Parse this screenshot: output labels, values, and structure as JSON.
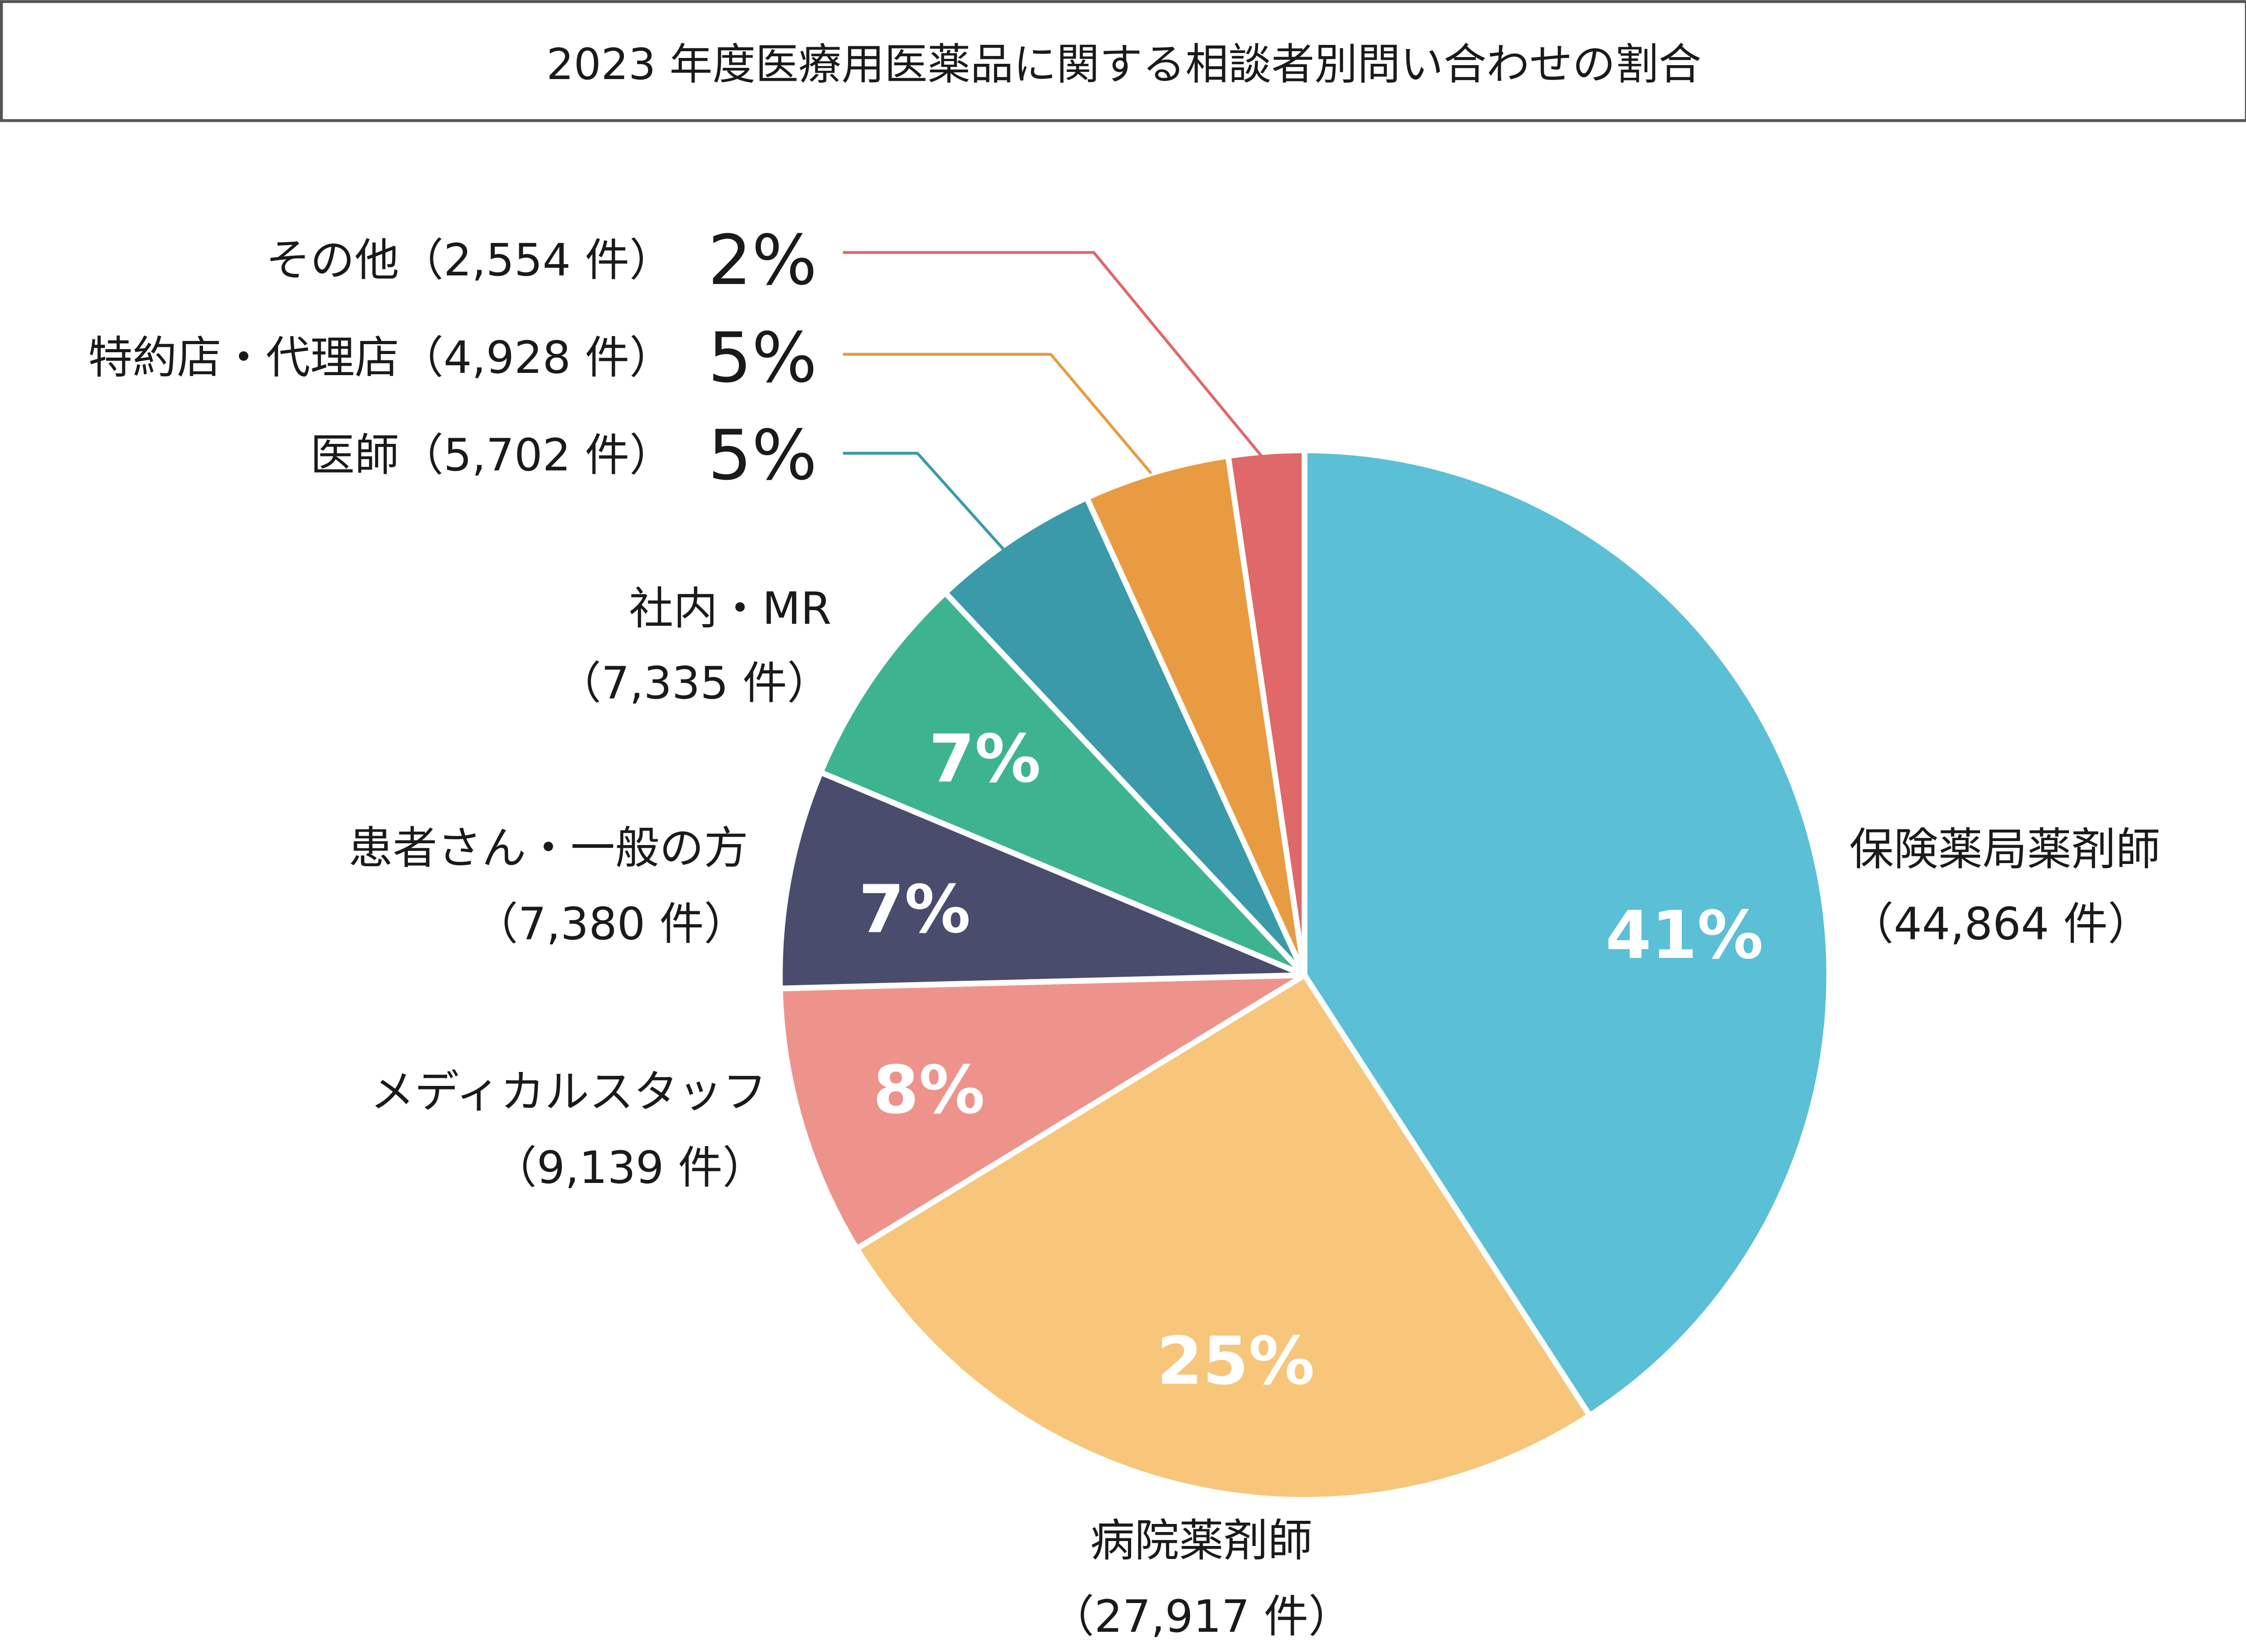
{
  "chart_data": {
    "type": "pie",
    "title": "2023 年度医療用医薬品に関する相談者別問い合わせの割合",
    "start_angle": "12 o'clock",
    "direction": "clockwise",
    "slices": [
      {
        "label": "保険薬局薬剤師",
        "count": 44864,
        "count_text": "（44,864 件）",
        "percent": 41,
        "percent_text": "41%",
        "color": "#5bbfd6"
      },
      {
        "label": "病院薬剤師",
        "count": 27917,
        "count_text": "（27,917 件）",
        "percent": 25,
        "percent_text": "25%",
        "color": "#f7c67b"
      },
      {
        "label": "メディカルスタッフ",
        "count": 9139,
        "count_text": "（9,139 件）",
        "percent": 8,
        "percent_text": "8%",
        "color": "#ee938c"
      },
      {
        "label": "患者さん・一般の方",
        "count": 7380,
        "count_text": "（7,380 件）",
        "percent": 7,
        "percent_text": "7%",
        "color": "#4a4c6d"
      },
      {
        "label": "社内・MR",
        "count": 7335,
        "count_text": "（7,335 件）",
        "percent": 7,
        "percent_text": "7%",
        "color": "#3db48f"
      },
      {
        "label": "医師",
        "count": 5702,
        "count_text": "（5,702 件）",
        "percent": 5,
        "percent_text": "5%",
        "color": "#3a9aa9"
      },
      {
        "label": "特約店・代理店",
        "count": 4928,
        "count_text": "（4,928 件）",
        "percent": 5,
        "percent_text": "5%",
        "color": "#e89b40"
      },
      {
        "label": "その他",
        "count": 2554,
        "count_text": "（2,554 件）",
        "percent": 2,
        "percent_text": "2%",
        "color": "#e06868"
      }
    ]
  }
}
